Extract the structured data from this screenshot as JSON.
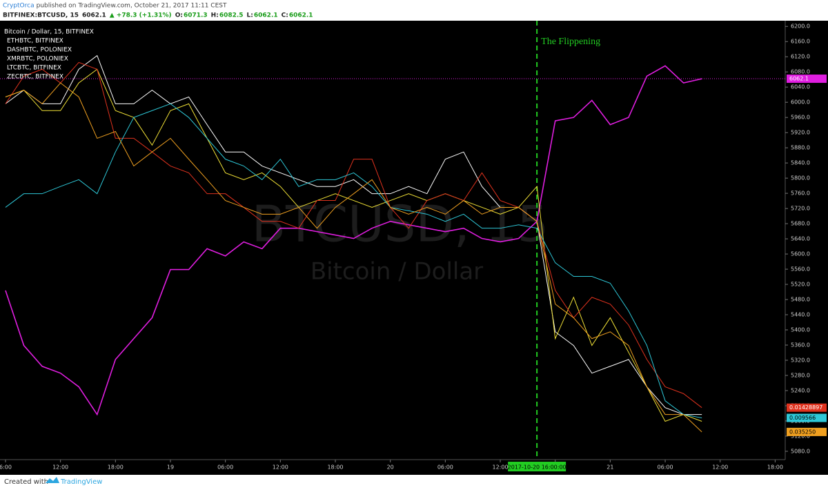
{
  "header": {
    "author": "CryptOrca",
    "published": "published on TradingView.com, October 21, 2017 11:11 CEST",
    "quote": [
      {
        "text": "BITFINEX:BTCUSD, 15",
        "color": "#222222"
      },
      {
        "text": "6062.1",
        "color": "#222222"
      },
      {
        "text": "▲ +78.3 (+1.31%)",
        "color": "#1a9d1a"
      },
      {
        "text": "O:",
        "color": "#222222"
      },
      {
        "text": "6071.3",
        "color": "#1a9d1a"
      },
      {
        "text": "H:",
        "color": "#222222"
      },
      {
        "text": "6082.5",
        "color": "#1a9d1a"
      },
      {
        "text": "L:",
        "color": "#222222"
      },
      {
        "text": "6062.1",
        "color": "#1a9d1a"
      },
      {
        "text": "C:",
        "color": "#222222"
      },
      {
        "text": "6062.1",
        "color": "#1a9d1a"
      }
    ]
  },
  "footer": {
    "created": "Created with",
    "brand": "TradingView"
  },
  "chart_data": {
    "type": "line",
    "legend_title": "Bitcoin / Dollar, 15, BITFINEX",
    "watermark": [
      "BTCUSD, 15",
      "Bitcoin / Dollar"
    ],
    "x": [
      0,
      2,
      4,
      6,
      8,
      10,
      12,
      14,
      16,
      18,
      20,
      22,
      24,
      26,
      28,
      30,
      32,
      34,
      36,
      38,
      40,
      42,
      44,
      46,
      48,
      50,
      52,
      54,
      56,
      58,
      60,
      62,
      64,
      66,
      68,
      70,
      72,
      74,
      76
    ],
    "xlim": [
      -0.6,
      85.1
    ],
    "xticks": [
      {
        "value": 0,
        "label": "6:00"
      },
      {
        "value": 6,
        "label": "12:00"
      },
      {
        "value": 12,
        "label": "18:00"
      },
      {
        "value": 18,
        "label": "19"
      },
      {
        "value": 24,
        "label": "06:00"
      },
      {
        "value": 30,
        "label": "12:00"
      },
      {
        "value": 36,
        "label": "18:00"
      },
      {
        "value": 42,
        "label": "20"
      },
      {
        "value": 48,
        "label": "06:00"
      },
      {
        "value": 54,
        "label": "12:00"
      },
      {
        "value": 60,
        "label": "18:00"
      },
      {
        "value": 66,
        "label": "21"
      },
      {
        "value": 72,
        "label": "06:00"
      },
      {
        "value": 78,
        "label": "12:00"
      },
      {
        "value": 84,
        "label": "18:00"
      }
    ],
    "ylim": [
      5058,
      6215
    ],
    "yticks": [
      {
        "value": 5080,
        "label": "5080.0"
      },
      {
        "value": 5120,
        "label": "5120.0"
      },
      {
        "value": 5160,
        "label": "5160.0"
      },
      {
        "value": 5200,
        "label": "5200.0"
      },
      {
        "value": 5240,
        "label": "5240.0"
      },
      {
        "value": 5280,
        "label": "5280.0"
      },
      {
        "value": 5320,
        "label": "5320.0"
      },
      {
        "value": 5360,
        "label": "5360.0"
      },
      {
        "value": 5400,
        "label": "5400.0"
      },
      {
        "value": 5440,
        "label": "5440.0"
      },
      {
        "value": 5480,
        "label": "5480.0"
      },
      {
        "value": 5520,
        "label": "5520.0"
      },
      {
        "value": 5560,
        "label": "5560.0"
      },
      {
        "value": 5600,
        "label": "5600.0"
      },
      {
        "value": 5640,
        "label": "5640.0"
      },
      {
        "value": 5680,
        "label": "5680.0"
      },
      {
        "value": 5720,
        "label": "5720.0"
      },
      {
        "value": 5760,
        "label": "5760.0"
      },
      {
        "value": 5800,
        "label": "5800.0"
      },
      {
        "value": 5840,
        "label": "5840.0"
      },
      {
        "value": 5880,
        "label": "5880.0"
      },
      {
        "value": 5920,
        "label": "5920.0"
      },
      {
        "value": 5960,
        "label": "5960.0"
      },
      {
        "value": 6000,
        "label": "6000.0"
      },
      {
        "value": 6040,
        "label": "6040.0"
      },
      {
        "value": 6080,
        "label": "6080.0"
      },
      {
        "value": 6120,
        "label": "6120.0"
      },
      {
        "value": 6160,
        "label": "6160.0"
      },
      {
        "value": 6200,
        "label": "6200.0"
      }
    ],
    "grid": false,
    "price_line": {
      "value": 6062.1,
      "color": "#e01ee0"
    },
    "vline": {
      "x": 58,
      "label": "The Flippening",
      "time_label": "2017-10-20 16:00:00",
      "color": "#22cc22"
    },
    "series": [
      {
        "name": "BTCUSD",
        "color": "#e01ee0",
        "values": [
          5504,
          5359,
          5304,
          5286,
          5250,
          5177,
          5322,
          5377,
          5432,
          5559,
          5559,
          5614,
          5595,
          5632,
          5614,
          5668,
          5668,
          5659,
          5650,
          5641,
          5668,
          5686,
          5677,
          5668,
          5659,
          5668,
          5641,
          5632,
          5641,
          5686,
          5951,
          5960,
          6005,
          5941,
          5960,
          6069,
          6096,
          6051,
          6062
        ]
      },
      {
        "name": "ETHBTC, BITFINEX",
        "color": "#ffffff",
        "values": [
          5996,
          6032,
          5996,
          5996,
          6087,
          6123,
          5996,
          5996,
          6032,
          5996,
          6014,
          5941,
          5869,
          5869,
          5832,
          5814,
          5796,
          5778,
          5778,
          5796,
          5759,
          5759,
          5778,
          5759,
          5850,
          5869,
          5778,
          5723,
          5723,
          5686,
          5395,
          5359,
          5286,
          5304,
          5322,
          5250,
          5195,
          5177,
          5177
        ]
      },
      {
        "name": "DASHBTC, POLONIEX",
        "color": "#f2e236",
        "values": [
          6014,
          6032,
          5978,
          5978,
          6051,
          6087,
          5978,
          5960,
          5887,
          5978,
          5996,
          5905,
          5814,
          5796,
          5814,
          5778,
          5723,
          5741,
          5759,
          5741,
          5723,
          5741,
          5759,
          5741,
          5759,
          5741,
          5723,
          5705,
          5723,
          5778,
          5377,
          5486,
          5359,
          5432,
          5341,
          5250,
          5159,
          5177,
          5159
        ]
      },
      {
        "name": "XMRBTC, POLONIEX",
        "color": "#e0321e",
        "last_label": "0.01428897",
        "values": [
          5996,
          6069,
          6087,
          6051,
          6105,
          6087,
          5905,
          5905,
          5869,
          5832,
          5814,
          5759,
          5759,
          5723,
          5686,
          5686,
          5668,
          5741,
          5741,
          5850,
          5850,
          5723,
          5668,
          5741,
          5759,
          5741,
          5814,
          5741,
          5723,
          5686,
          5504,
          5432,
          5486,
          5468,
          5413,
          5322,
          5250,
          5232,
          5195
        ]
      },
      {
        "name": "LTCBTC, BITFINEX",
        "color": "#2ec8d8",
        "last_label": "0.009566",
        "values": [
          5723,
          5759,
          5759,
          5778,
          5796,
          5759,
          5869,
          5960,
          5978,
          5996,
          5960,
          5905,
          5850,
          5832,
          5796,
          5850,
          5778,
          5796,
          5796,
          5814,
          5778,
          5723,
          5714,
          5705,
          5686,
          5705,
          5668,
          5668,
          5677,
          5668,
          5577,
          5541,
          5541,
          5523,
          5450,
          5359,
          5213,
          5177,
          5168
        ]
      },
      {
        "name": "ZECBTC, BITFINEX",
        "color": "#f0a020",
        "last_label": "0.035250",
        "values": [
          6014,
          6032,
          5996,
          6051,
          6014,
          5905,
          5923,
          5832,
          5869,
          5905,
          5850,
          5796,
          5741,
          5723,
          5705,
          5705,
          5723,
          5668,
          5723,
          5759,
          5796,
          5723,
          5705,
          5723,
          5705,
          5741,
          5705,
          5723,
          5723,
          5686,
          5468,
          5432,
          5377,
          5395,
          5359,
          5250,
          5177,
          5177,
          5131
        ]
      }
    ]
  }
}
